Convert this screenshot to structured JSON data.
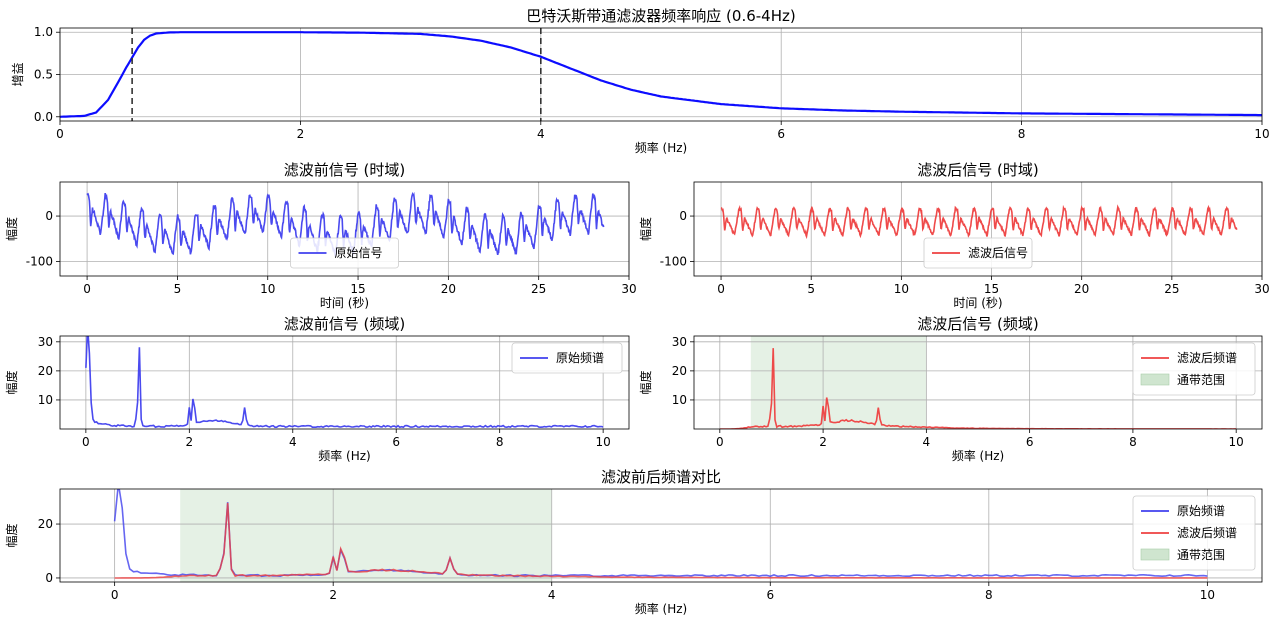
{
  "chart_data": [
    {
      "type": "line",
      "title": "巴特沃斯带通滤波器频率响应 (0.6-4Hz)",
      "xlabel": "频率 (Hz)",
      "ylabel": "增益",
      "xlim": [
        0,
        10
      ],
      "ylim": [
        -0.05,
        1.05
      ],
      "xticks": [
        "0",
        "2",
        "4",
        "6",
        "8",
        "10"
      ],
      "yticks": [
        "0.0",
        "0.5",
        "1.0"
      ],
      "grid": true,
      "cutoffs": [
        0.6,
        4.0
      ],
      "series": [
        {
          "color": "#0000ff",
          "x": [
            0,
            0.2,
            0.3,
            0.4,
            0.5,
            0.55,
            0.6,
            0.65,
            0.7,
            0.75,
            0.8,
            0.9,
            1.0,
            1.5,
            2.0,
            2.5,
            3.0,
            3.25,
            3.5,
            3.75,
            4.0,
            4.25,
            4.5,
            4.75,
            5.0,
            5.5,
            6.0,
            6.5,
            7.0,
            8.0,
            9.0,
            10.0
          ],
          "y": [
            0.0,
            0.01,
            0.05,
            0.2,
            0.45,
            0.58,
            0.7,
            0.82,
            0.91,
            0.96,
            0.985,
            0.997,
            1.0,
            1.0,
            1.0,
            0.995,
            0.98,
            0.95,
            0.9,
            0.82,
            0.71,
            0.57,
            0.43,
            0.32,
            0.24,
            0.15,
            0.1,
            0.075,
            0.06,
            0.04,
            0.03,
            0.02
          ]
        }
      ]
    },
    {
      "type": "line",
      "title": "滤波前信号 (时域)",
      "xlabel": "时间 (秒)",
      "ylabel": "幅度",
      "xlim": [
        -1.5,
        30
      ],
      "ylim": [
        -132,
        75
      ],
      "xticks": [
        "0",
        "5",
        "10",
        "15",
        "20",
        "25",
        "30"
      ],
      "yticks": [
        "-100",
        "0"
      ],
      "grid": true,
      "legend": "bottom-center",
      "series": [
        {
          "name": "原始信号",
          "color": "#4040ee",
          "signal": "pulse",
          "duration": 28.6,
          "period": 1.0,
          "amplitude": 88,
          "drift": 30
        }
      ]
    },
    {
      "type": "line",
      "title": "滤波后信号 (时域)",
      "xlabel": "时间 (秒)",
      "ylabel": "幅度",
      "xlim": [
        -1.5,
        30
      ],
      "ylim": [
        -132,
        75
      ],
      "xticks": [
        "0",
        "5",
        "10",
        "15",
        "20",
        "25",
        "30"
      ],
      "yticks": [
        "-100",
        "0"
      ],
      "grid": true,
      "legend": "bottom-center",
      "series": [
        {
          "name": "滤波后信号",
          "color": "#ee4040",
          "signal": "pulse",
          "duration": 28.6,
          "period": 1.0,
          "amplitude": 60,
          "drift": 0
        }
      ]
    },
    {
      "type": "line",
      "title": "滤波前信号 (频域)",
      "xlabel": "频率 (Hz)",
      "ylabel": "幅度",
      "xlim": [
        -0.5,
        10.5
      ],
      "ylim": [
        0,
        32
      ],
      "xticks": [
        "0",
        "2",
        "4",
        "6",
        "8",
        "10"
      ],
      "yticks": [
        "10",
        "20",
        "30"
      ],
      "grid": true,
      "legend": "top-right",
      "series": [
        {
          "name": "原始频谱",
          "color": "#4040ee",
          "spectrum": "raw"
        }
      ]
    },
    {
      "type": "line",
      "title": "滤波后信号 (频域)",
      "xlabel": "频率 (Hz)",
      "ylabel": "幅度",
      "xlim": [
        -0.5,
        10.5
      ],
      "ylim": [
        0,
        32
      ],
      "xticks": [
        "0",
        "2",
        "4",
        "6",
        "8",
        "10"
      ],
      "yticks": [
        "10",
        "20",
        "30"
      ],
      "grid": true,
      "legend": "top-right",
      "band": {
        "from": 0.6,
        "to": 4.0,
        "name": "通带范围",
        "color": "#cfe5cf"
      },
      "series": [
        {
          "name": "滤波后频谱",
          "color": "#ee4040",
          "spectrum": "filtered"
        }
      ]
    },
    {
      "type": "line",
      "title": "滤波前后频谱对比",
      "xlabel": "频率 (Hz)",
      "ylabel": "幅度",
      "xlim": [
        -0.5,
        10.5
      ],
      "ylim": [
        -1.5,
        33
      ],
      "xticks": [
        "0",
        "2",
        "4",
        "6",
        "8",
        "10"
      ],
      "yticks": [
        "0",
        "20"
      ],
      "grid": true,
      "legend": "top-right",
      "band": {
        "from": 0.6,
        "to": 4.0,
        "name": "通带范围",
        "color": "#cfe5cf"
      },
      "series": [
        {
          "name": "原始频谱",
          "color": "#4040ee",
          "spectrum": "raw"
        },
        {
          "name": "滤波后频谱",
          "color": "#ee4040",
          "spectrum": "filtered"
        }
      ]
    }
  ]
}
